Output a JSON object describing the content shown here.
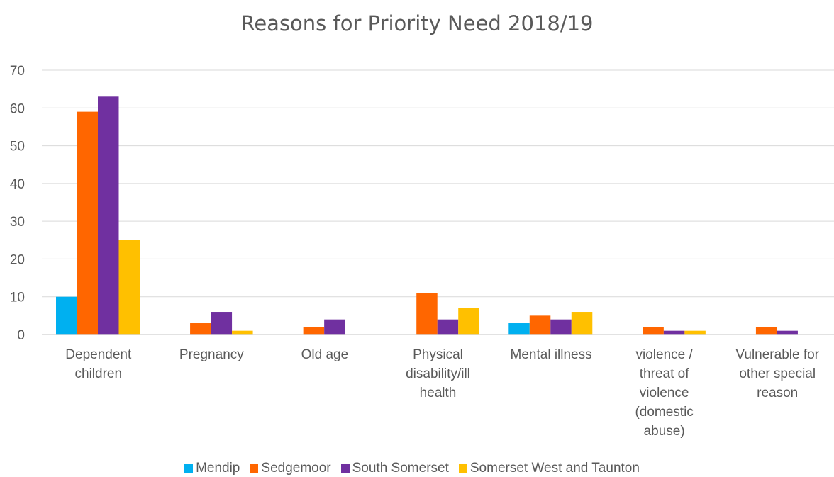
{
  "chart_data": {
    "type": "bar",
    "title": "Reasons for Priority Need 2018/19",
    "xlabel": "",
    "ylabel": "",
    "ylim": [
      0,
      70
    ],
    "yticks": [
      0,
      10,
      20,
      30,
      40,
      50,
      60,
      70
    ],
    "grid": true,
    "legend_position": "bottom",
    "categories": [
      "Dependent children",
      "Pregnancy",
      "Old age",
      "Physical disability/ill health",
      "Mental illness",
      "violence / threat of violence (domestic abuse)",
      "Vulnerable for other special reason"
    ],
    "category_lines": [
      [
        "Dependent",
        "children"
      ],
      [
        "Pregnancy"
      ],
      [
        "Old age"
      ],
      [
        "Physical",
        "disability/ill",
        "health"
      ],
      [
        "Mental illness"
      ],
      [
        "violence /",
        "threat of",
        "violence",
        "(domestic",
        "abuse)"
      ],
      [
        "Vulnerable for",
        "other special",
        "reason"
      ]
    ],
    "series": [
      {
        "name": "Mendip",
        "color": "#00b0f0",
        "values": [
          10,
          0,
          0,
          0,
          3,
          0,
          0
        ]
      },
      {
        "name": "Sedgemoor",
        "color": "#ff6600",
        "values": [
          59,
          3,
          2,
          11,
          5,
          2,
          2
        ]
      },
      {
        "name": "South Somerset",
        "color": "#7030a0",
        "values": [
          63,
          6,
          4,
          4,
          4,
          1,
          1
        ]
      },
      {
        "name": "Somerset West and Taunton",
        "color": "#ffc000",
        "values": [
          25,
          1,
          0,
          7,
          6,
          1,
          0
        ]
      }
    ]
  }
}
